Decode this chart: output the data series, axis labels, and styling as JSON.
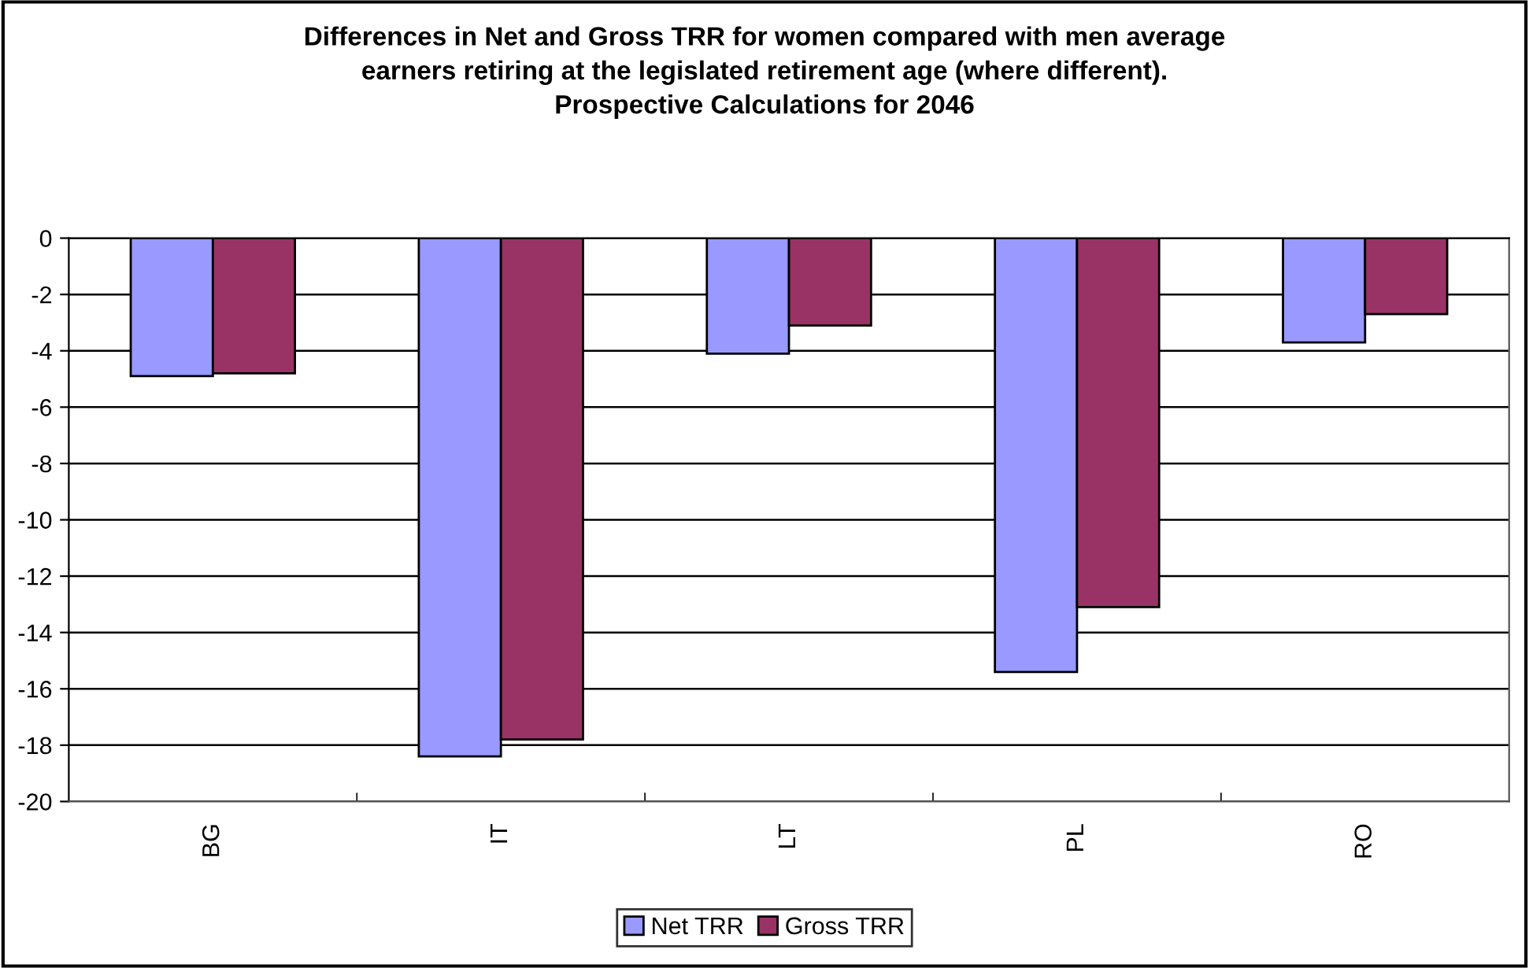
{
  "chart_data": {
    "type": "bar",
    "title": "Differences in Net and Gross TRR for women compared with men average\nearners retiring at the legislated retirement age (where different).\nProspective Calculations for 2046",
    "categories": [
      "BG",
      "IT",
      "LT",
      "PL",
      "RO"
    ],
    "series": [
      {
        "name": "Net TRR",
        "color": "#9999ff",
        "values": [
          -4.9,
          -18.4,
          -4.1,
          -15.4,
          -3.7
        ]
      },
      {
        "name": "Gross TRR",
        "color": "#993366",
        "values": [
          -4.8,
          -17.8,
          -3.1,
          -13.1,
          -2.7
        ]
      }
    ],
    "ylim": [
      -20,
      0
    ],
    "yticks": [
      -20,
      -18,
      -16,
      -14,
      -12,
      -10,
      -8,
      -6,
      -4,
      -2,
      0
    ],
    "grid": "y",
    "legend": "bottom"
  }
}
